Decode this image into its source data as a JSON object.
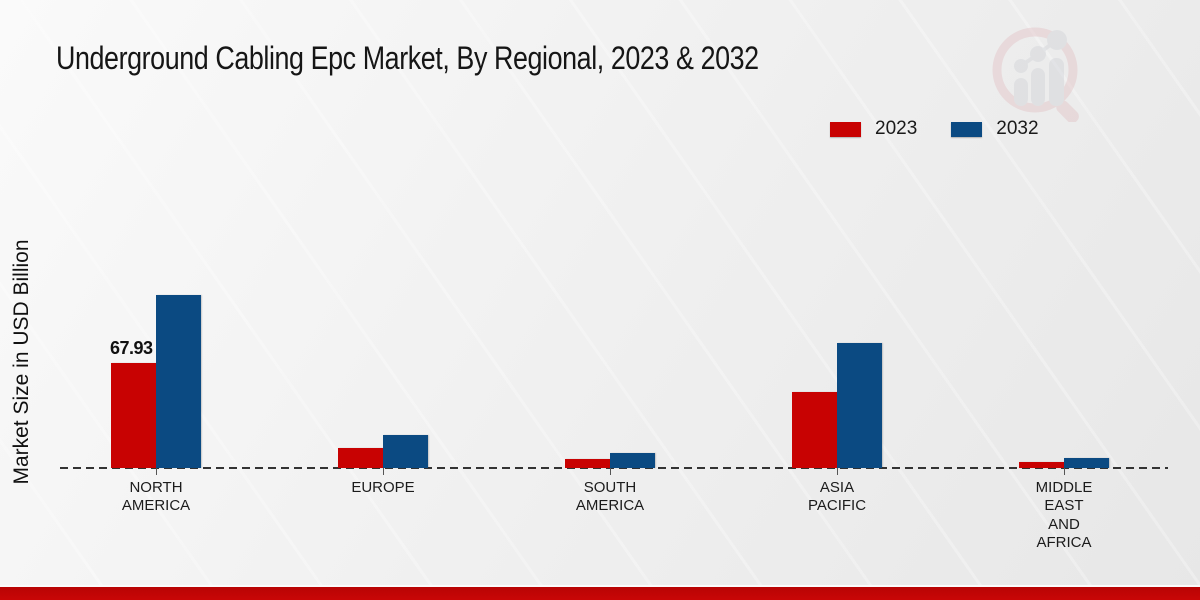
{
  "title": "Underground Cabling Epc Market, By Regional, 2023 & 2032",
  "y_axis_label": "Market Size in USD Billion",
  "accent_colors": {
    "series_2023": "#c80202",
    "series_2032": "#0b4a82",
    "footer_band": "#c90606"
  },
  "logo_icon": "magnifier-bar-chart-watermark-icon",
  "chart_data": {
    "type": "bar",
    "title": "Underground Cabling Epc Market, By Regional, 2023 & 2032",
    "xlabel": "",
    "ylabel": "Market Size in USD Billion",
    "categories": [
      "NORTH AMERICA",
      "EUROPE",
      "SOUTH AMERICA",
      "ASIA PACIFIC",
      "MIDDLE EAST AND AFRICA"
    ],
    "category_labels": [
      "NORTH\nAMERICA",
      "EUROPE",
      "SOUTH\nAMERICA",
      "ASIA\nPACIFIC",
      "MIDDLE\nEAST\nAND\nAFRICA"
    ],
    "series": [
      {
        "name": "2023",
        "color": "#c80202",
        "values": [
          67.93,
          12.9,
          5.6,
          49.2,
          3.9
        ]
      },
      {
        "name": "2032",
        "color": "#0b4a82",
        "values": [
          111.7,
          21.1,
          9.9,
          80.6,
          6.5
        ]
      }
    ],
    "annotations": [
      {
        "category_index": 0,
        "series_index": 0,
        "text": "67.93"
      }
    ],
    "axis": {
      "baseline_style": "dashed",
      "gridlines": false,
      "y_ticks_visible": false
    },
    "legend_position": "top-right",
    "units": "USD Billion"
  }
}
